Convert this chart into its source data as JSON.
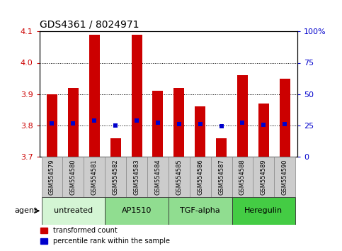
{
  "title": "GDS4361 / 8024971",
  "samples": [
    "GSM554579",
    "GSM554580",
    "GSM554581",
    "GSM554582",
    "GSM554583",
    "GSM554584",
    "GSM554585",
    "GSM554586",
    "GSM554587",
    "GSM554588",
    "GSM554589",
    "GSM554590"
  ],
  "red_values": [
    3.9,
    3.92,
    4.09,
    3.76,
    4.09,
    3.91,
    3.92,
    3.86,
    3.76,
    3.96,
    3.87,
    3.95
  ],
  "blue_values": [
    3.806,
    3.806,
    3.815,
    3.799,
    3.815,
    3.81,
    3.804,
    3.804,
    3.798,
    3.808,
    3.802,
    3.805
  ],
  "ylim_left": [
    3.7,
    4.1
  ],
  "ylim_right": [
    0,
    100
  ],
  "yticks_left": [
    3.7,
    3.8,
    3.9,
    4.0,
    4.1
  ],
  "yticks_right": [
    0,
    25,
    50,
    75,
    100
  ],
  "ytick_labels_right": [
    "0",
    "25",
    "50",
    "75",
    "100%"
  ],
  "groups": [
    {
      "label": "untreated",
      "start": 0,
      "end": 3,
      "color": "#d4f5d4"
    },
    {
      "label": "AP1510",
      "start": 3,
      "end": 6,
      "color": "#90dd90"
    },
    {
      "label": "TGF-alpha",
      "start": 6,
      "end": 9,
      "color": "#90dd90"
    },
    {
      "label": "Heregulin",
      "start": 9,
      "end": 12,
      "color": "#44cc44"
    }
  ],
  "red_color": "#cc0000",
  "blue_color": "#0000cc",
  "bar_bottom": 3.7,
  "bar_width": 0.5,
  "legend_red": "transformed count",
  "legend_blue": "percentile rank within the sample",
  "title_fontsize": 10,
  "tick_fontsize": 8,
  "sample_fontsize": 6,
  "group_fontsize": 8
}
